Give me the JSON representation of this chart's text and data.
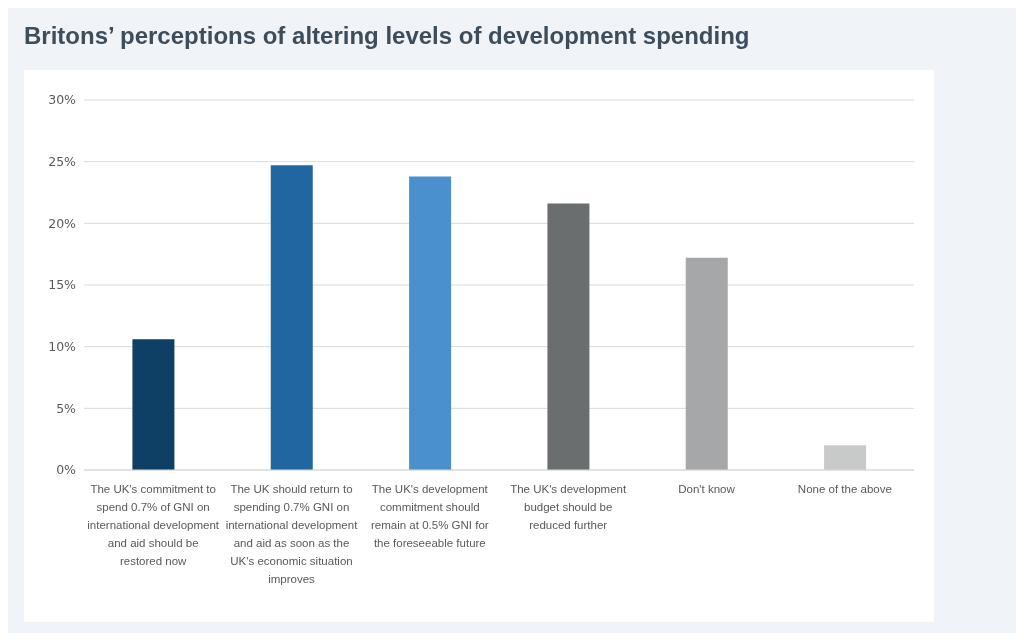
{
  "chart_data": {
    "type": "bar",
    "title": "Britons’ perceptions of altering levels of development spending",
    "categories": [
      "The UK's commitment to spend 0.7% of GNI on international development and aid should be restored now",
      "The UK should return to spending 0.7% GNI on international development and aid as soon as the UK's economic situation improves",
      "The UK's development commitment should remain at 0.5% GNI for the foreseeable future",
      "The UK's development budget should be reduced further",
      "Don't know",
      "None of the above"
    ],
    "values": [
      10.6,
      24.7,
      23.8,
      21.6,
      17.2,
      2
    ],
    "colors": [
      "#0d4064",
      "#2166a0",
      "#4a90ce",
      "#6b6e6f",
      "#a5a7a8",
      "#c8cac9"
    ],
    "ylim": [
      0,
      30
    ],
    "yticks": [
      {
        "value": 0,
        "label": "0%"
      },
      {
        "value": 5,
        "label": "5%"
      },
      {
        "value": 10,
        "label": "10%"
      },
      {
        "value": 15,
        "label": "15%"
      },
      {
        "value": 20,
        "label": "20%"
      },
      {
        "value": 25,
        "label": "25%"
      },
      {
        "value": 30,
        "label": "30%"
      }
    ],
    "grid": "y"
  }
}
